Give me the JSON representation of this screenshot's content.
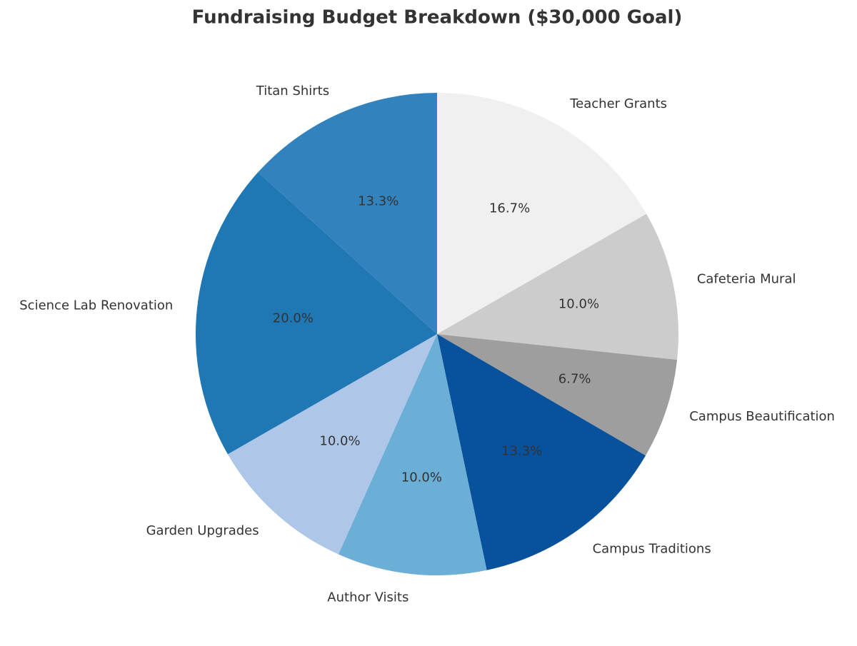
{
  "chart_data": {
    "type": "pie",
    "title": "Fundraising Budget Breakdown ($30,000 Goal)",
    "categories": [
      "Teacher Grants",
      "Cafeteria Mural",
      "Campus Beautification",
      "Campus Traditions",
      "Author Visits",
      "Garden Upgrades",
      "Science Lab Renovation",
      "Titan Shirts"
    ],
    "values": [
      16.7,
      10.0,
      6.7,
      13.3,
      10.0,
      10.0,
      20.0,
      13.3
    ],
    "value_labels": [
      "16.7%",
      "10.0%",
      "6.7%",
      "13.3%",
      "10.0%",
      "10.0%",
      "20.0%",
      "13.3%"
    ],
    "colors": [
      "#f0f0f0",
      "#cccccc",
      "#9e9e9e",
      "#08519c",
      "#6baed6",
      "#aec7e8",
      "#1f77b4",
      "#3182bd"
    ]
  }
}
